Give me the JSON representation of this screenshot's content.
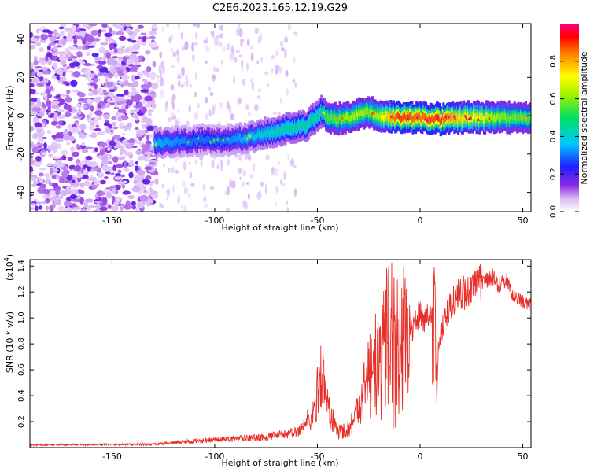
{
  "title": "C2E6.2023.165.12.19.G29",
  "chart_data": [
    {
      "type": "heatmap",
      "xlabel": "Height of straight line (km)",
      "ylabel": "Frequency (Hz)",
      "xlim": [
        -190,
        54
      ],
      "ylim": [
        -50,
        48
      ],
      "xticks": [
        -150,
        -100,
        -50,
        0,
        50
      ],
      "yticks": [
        -40,
        -20,
        0,
        20,
        40
      ],
      "colorbar": {
        "label": "Normalized spectral amplitude",
        "range": [
          0,
          1
        ],
        "ticks": [
          0.0,
          0.2,
          0.4,
          0.6,
          0.8
        ]
      },
      "noise_region": {
        "x": [
          -190,
          -129
        ],
        "amplitude": 0.1
      },
      "sparse_noise_region": {
        "x": [
          -129,
          -60
        ],
        "amplitude": 0.05
      },
      "signal_band": {
        "x": [
          -129,
          -110,
          -95,
          -85,
          -75,
          -65,
          -55,
          -48,
          -45,
          -38,
          -30,
          -25,
          -20,
          -10,
          0,
          10,
          20,
          30,
          40,
          54
        ],
        "center_hz": [
          -14,
          -13,
          -13,
          -12,
          -9,
          -7,
          -5,
          2,
          -1,
          -2,
          1,
          2,
          0,
          -1,
          -1,
          -2,
          -1,
          -1,
          -1,
          -1
        ],
        "amplitude": [
          0.35,
          0.3,
          0.3,
          0.35,
          0.4,
          0.45,
          0.45,
          0.45,
          0.55,
          0.6,
          0.65,
          0.6,
          0.65,
          0.9,
          0.85,
          0.9,
          0.75,
          0.7,
          0.6,
          0.55
        ]
      }
    },
    {
      "type": "line",
      "xlabel": "Height of straight line (km)",
      "ylabel": "SNR (10 * v/v)",
      "y_multiplier": "(x10^4)",
      "xlim": [
        -190,
        54
      ],
      "ylim": [
        0,
        14500
      ],
      "xticks": [
        -150,
        -100,
        -50,
        0,
        50
      ],
      "yticks": [
        0.2,
        0.4,
        0.6,
        0.8,
        1.0,
        1.2,
        1.4
      ],
      "color": "#e8302a",
      "series": [
        {
          "x": [
            -190,
            -130,
            -120,
            -100,
            -75,
            -60,
            -52,
            -48,
            -46,
            -44,
            -42,
            -40,
            -35,
            -30,
            -25,
            -22,
            -20,
            -18,
            -15,
            -12,
            -10,
            -8,
            -5,
            -2,
            0,
            3,
            6,
            7,
            8,
            9,
            12,
            15,
            18,
            22,
            26,
            30,
            35,
            38,
            42,
            46,
            50,
            54
          ],
          "y": [
            200,
            250,
            400,
            600,
            800,
            1200,
            2500,
            6000,
            4000,
            2800,
            1800,
            1200,
            1400,
            3000,
            6000,
            8200,
            6500,
            8500,
            9800,
            9000,
            8200,
            9500,
            8800,
            9800,
            10300,
            10000,
            10600,
            14500,
            4000,
            8000,
            10200,
            11000,
            11600,
            12000,
            12400,
            12700,
            13200,
            12600,
            12900,
            11600,
            11200,
            11000
          ]
        }
      ]
    }
  ]
}
